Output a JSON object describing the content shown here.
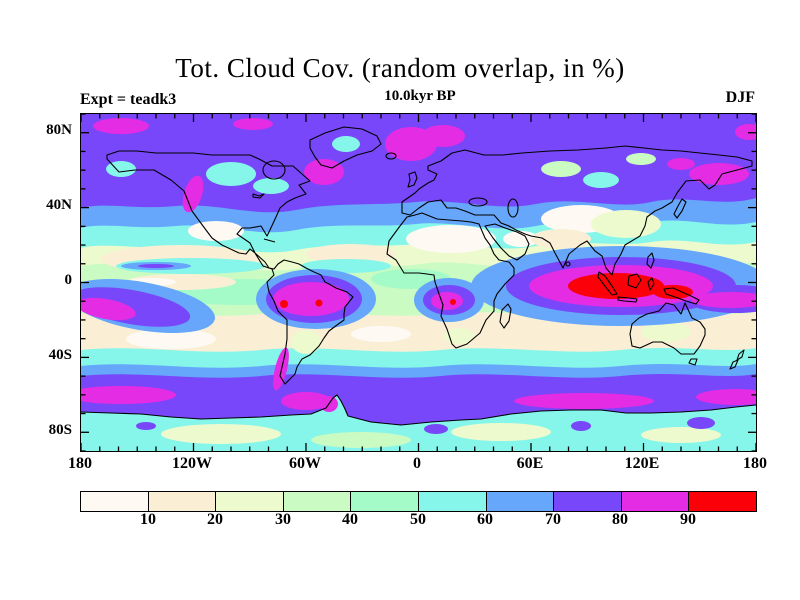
{
  "title": "Tot. Cloud Cov. (random overlap, in %)",
  "subtitle": "10.0kyr BP",
  "experiment_label": "Expt = teadk3",
  "season_label": "DJF",
  "chart_data": {
    "type": "heatmap",
    "subtype": "filled-contour world map, equirectangular projection",
    "title": "Tot. Cloud Cov. (random overlap, in %)",
    "subtitle": "10.0kyr BP",
    "experiment": "Expt = teadk3",
    "season": "DJF",
    "units": "%",
    "xlim": [
      -180,
      180
    ],
    "ylim": [
      -90,
      90
    ],
    "x_tick_labels": [
      "180",
      "120W",
      "60W",
      "0",
      "60E",
      "120E",
      "180"
    ],
    "y_tick_labels": [
      "80N",
      "40N",
      "0",
      "40S",
      "80S"
    ],
    "minor_tick_interval_deg": 10,
    "grid": false,
    "colorbar": {
      "orientation": "horizontal",
      "levels": [
        0,
        10,
        20,
        30,
        40,
        50,
        60,
        70,
        80,
        90,
        100
      ],
      "tick_labels": [
        "10",
        "20",
        "30",
        "40",
        "50",
        "60",
        "70",
        "80",
        "90"
      ],
      "colors": [
        "#FFF9F4",
        "#FAEFD5",
        "#EDFACD",
        "#C9FBC2",
        "#A5FBC8",
        "#86F5EA",
        "#66A7FB",
        "#7847FA",
        "#E32CE3",
        "#FB0008"
      ]
    },
    "notable_features": [
      {
        "region": "Arctic and high northern latitudes",
        "value_pct": "70-90"
      },
      {
        "region": "North Pacific / British Columbia coast",
        "value_pct": "80-90"
      },
      {
        "region": "North Atlantic / Scandinavia",
        "value_pct": "80-90"
      },
      {
        "region": "Subtropical deserts (Sahara, Arabia, Central Asia, Mexico)",
        "value_pct": "0-20"
      },
      {
        "region": "Amazon basin",
        "value_pct": "80-100 (red cores)"
      },
      {
        "region": "Congo / Angola",
        "value_pct": "80-100 (red core)"
      },
      {
        "region": "Maritime Continent (Indonesia)",
        "value_pct": "90-100 (large red core)"
      },
      {
        "region": "South Pacific Convergence Zone",
        "value_pct": "70-90"
      },
      {
        "region": "Southern Ocean storm track",
        "value_pct": "70-90"
      },
      {
        "region": "Antarctic interior",
        "value_pct": "20-50"
      }
    ]
  }
}
